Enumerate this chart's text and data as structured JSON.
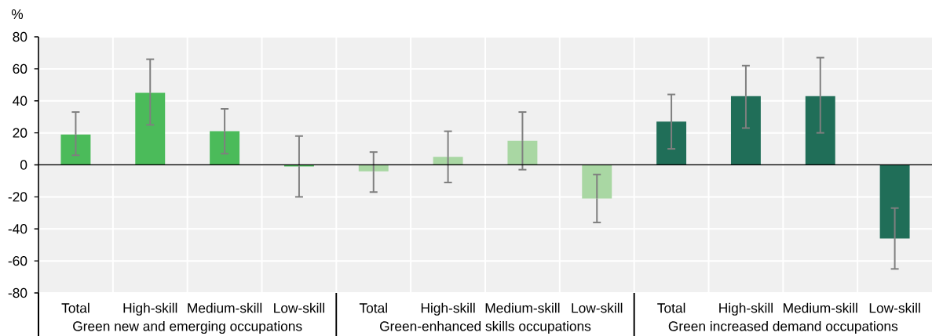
{
  "chart_data": {
    "type": "bar",
    "ylabel": "%",
    "categories": [
      "Total",
      "High-skill",
      "Medium-skill",
      "Low-skill",
      "Total",
      "High-skill",
      "Medium-skill",
      "Low-skill",
      "Total",
      "High-skill",
      "Medium-skill",
      "Low-skill"
    ],
    "values": [
      19,
      45,
      21,
      -1,
      -4,
      5,
      15,
      -21,
      27,
      43,
      43,
      -46
    ],
    "colors": [
      "#4bbb5a",
      "#4bbb5a",
      "#4bbb5a",
      "#4bbb5a",
      "#a9d7a3",
      "#a9d7a3",
      "#a9d7a3",
      "#a9d7a3",
      "#206e58",
      "#206e58",
      "#206e58",
      "#206e58"
    ],
    "errors": [
      [
        6,
        33
      ],
      [
        25,
        66
      ],
      [
        7,
        35
      ],
      [
        -20,
        18
      ],
      [
        -17,
        8
      ],
      [
        -11,
        21
      ],
      [
        -3,
        33
      ],
      [
        -36,
        -6
      ],
      [
        10,
        44
      ],
      [
        23,
        62
      ],
      [
        20,
        67
      ],
      [
        -65,
        -27
      ]
    ],
    "annotations": [
      "Green new and emerging occupations",
      "Green-enhanced skills occupations",
      "Green increased demand occupations"
    ],
    "ylim": [
      -80,
      80
    ],
    "yticks": [
      -80,
      -60,
      -40,
      -20,
      0,
      20,
      40,
      60,
      80
    ],
    "grid": true
  }
}
